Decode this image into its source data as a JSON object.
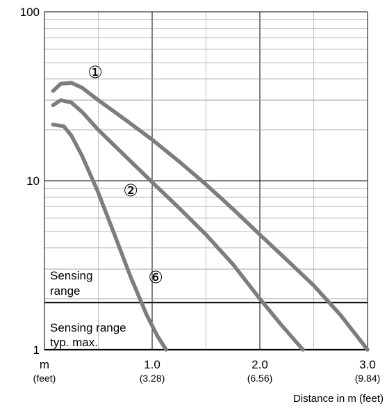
{
  "chart_data": {
    "type": "line",
    "xlim": [
      0,
      3.0
    ],
    "ylim": [
      1,
      100
    ],
    "yscale": "log",
    "grid": true,
    "x_ticks": [
      {
        "value": 0,
        "label": "m",
        "sublabel": "(feet)"
      },
      {
        "value": 1.0,
        "label": "1.0",
        "sublabel": "(3.28)"
      },
      {
        "value": 2.0,
        "label": "2.0",
        "sublabel": "(6.56)"
      },
      {
        "value": 3.0,
        "label": "3.0",
        "sublabel": "(9.84)"
      }
    ],
    "y_ticks": [
      {
        "value": 1,
        "label": "1"
      },
      {
        "value": 10,
        "label": "10"
      },
      {
        "value": 100,
        "label": "100"
      }
    ],
    "xlabel": "Distance in m (feet)",
    "series": [
      {
        "marker": "①",
        "x": [
          0.08,
          0.15,
          0.25,
          0.35,
          0.5,
          0.75,
          1.0,
          1.25,
          1.5,
          1.75,
          2.0,
          2.25,
          2.5,
          2.75,
          3.0
        ],
        "y": [
          34,
          37.5,
          38,
          35.5,
          30,
          23,
          17.5,
          13,
          9.5,
          6.8,
          4.8,
          3.4,
          2.4,
          1.6,
          1.0
        ]
      },
      {
        "marker": "②",
        "x": [
          0.08,
          0.15,
          0.25,
          0.35,
          0.5,
          0.75,
          1.0,
          1.25,
          1.5,
          1.75,
          2.0,
          2.2,
          2.4
        ],
        "y": [
          28,
          30,
          29,
          25.5,
          20,
          14,
          9.8,
          6.9,
          4.8,
          3.2,
          2.0,
          1.4,
          1.0
        ]
      },
      {
        "marker": "⑥",
        "x": [
          0.08,
          0.18,
          0.25,
          0.35,
          0.5,
          0.65,
          0.8,
          0.95,
          1.05,
          1.13
        ],
        "y": [
          21.5,
          21,
          18.5,
          14,
          8.5,
          4.8,
          2.7,
          1.6,
          1.2,
          1.0
        ]
      }
    ],
    "series_color": "#7d7d7d",
    "threshold": {
      "y": 1.9
    },
    "regions": {
      "above": [
        "Sensing",
        "range"
      ],
      "below": [
        "Sensing range",
        "typ. max."
      ]
    }
  }
}
